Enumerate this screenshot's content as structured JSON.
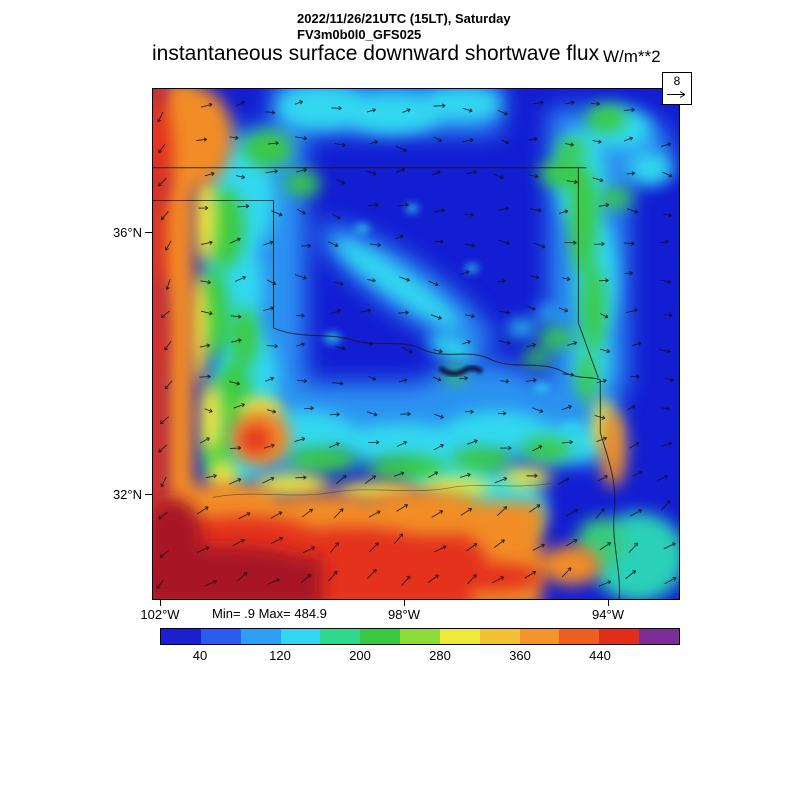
{
  "header": {
    "datetime": "2022/11/26/21UTC (15LT), Saturday",
    "model": "FV3m0b0l0_GFS025",
    "title": "instantaneous surface downward shortwave flux",
    "units": "W/m**2"
  },
  "reference": {
    "value": "8"
  },
  "axes": {
    "lat": [
      "36°N",
      "32°N"
    ],
    "lon": [
      "102°W",
      "98°W",
      "94°W"
    ]
  },
  "stats": {
    "text": "Min= .9 Max= 484.9"
  },
  "colorbar": {
    "ticks": [
      "40",
      "120",
      "200",
      "280",
      "360",
      "440"
    ],
    "colors": [
      "#1a1fd0",
      "#2b5cf2",
      "#2d9ef5",
      "#30d6f2",
      "#2fd98d",
      "#38c940",
      "#8edc38",
      "#efe93a",
      "#f3c233",
      "#f3952a",
      "#ee5f1f",
      "#e32d1b",
      "#7c2d96"
    ]
  },
  "chart_data": {
    "type": "heatmap",
    "title": "instantaneous surface downward shortwave flux",
    "units": "W/m**2",
    "min": 0.9,
    "max": 484.9,
    "colorbar_boundaries": [
      40,
      80,
      120,
      160,
      200,
      240,
      280,
      320,
      360,
      400,
      440,
      480
    ],
    "lat_ticks": [
      36,
      32
    ],
    "lon_ticks": [
      -102,
      -98,
      -94
    ],
    "legend_position": "bottom",
    "notes": "Low flux (deep blue) over interior; high flux (orange/red, maxima near 480) along western edge and southern band; wind vectors overlaid; reference vector = 8"
  }
}
